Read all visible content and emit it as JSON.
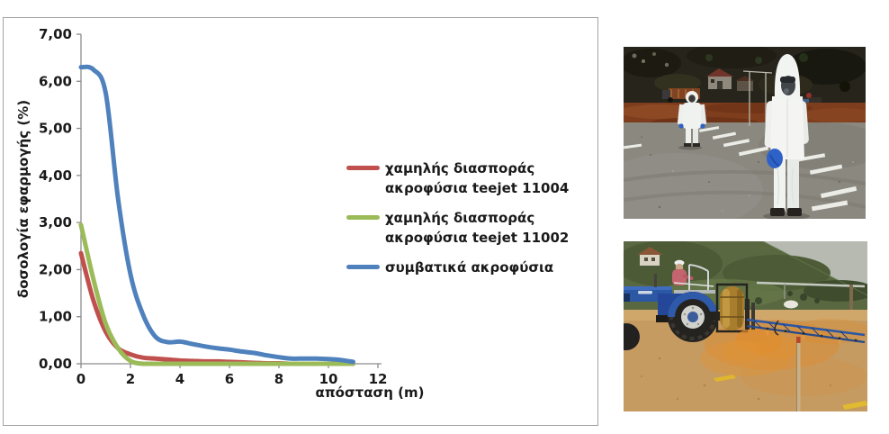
{
  "page": {
    "background": "#ffffff",
    "border_color": "#a3a3a3"
  },
  "chart": {
    "ylabel": "δοσολογία εφαρμογής (%)",
    "xlabel": "απόσταση (m)",
    "axis_color": "#8c8c8c",
    "text_color": "#1a1a1a",
    "legend": [
      {
        "lines": [
          "χαμηλής διασποράς",
          "ακροφύσια teejet 11004"
        ]
      },
      {
        "lines": [
          "χαμηλής διασποράς",
          "ακροφύσια teejet 11002"
        ]
      },
      {
        "lines": [
          "συμβατικά ακροφύσια",
          ""
        ]
      }
    ]
  },
  "chart_data": {
    "type": "line",
    "title": "",
    "xlabel": "απόσταση (m)",
    "ylabel": "δοσολογία εφαρμογής (%)",
    "xlim": [
      0,
      12
    ],
    "ylim": [
      0,
      7
    ],
    "x_tick_labels": [
      "0",
      "2",
      "4",
      "6",
      "8",
      "10",
      "12"
    ],
    "y_tick_labels": [
      "0,00",
      "1,00",
      "2,00",
      "3,00",
      "4,00",
      "5,00",
      "6,00",
      "7,00"
    ],
    "grid": false,
    "legend_position": "right-middle",
    "x": [
      0,
      0.5,
      1,
      1.5,
      2,
      2.5,
      3,
      3.5,
      4,
      4.5,
      5,
      5.5,
      6,
      6.5,
      7,
      7.5,
      8,
      8.5,
      9,
      9.5,
      10,
      10.5,
      11
    ],
    "series": [
      {
        "name": "χαμηλής διασποράς ακροφύσια teejet 11004",
        "color": "#C0504D",
        "values": [
          2.35,
          1.35,
          0.68,
          0.33,
          0.2,
          0.13,
          0.11,
          0.09,
          0.07,
          0.06,
          0.05,
          0.05,
          0.04,
          0.03,
          0.02,
          0.01,
          0.01,
          0.0,
          0.0,
          0.0,
          0.0,
          0.0,
          0.0
        ]
      },
      {
        "name": "χαμηλής διασποράς ακροφύσια teejet 11002",
        "color": "#9BBB59",
        "values": [
          2.95,
          1.8,
          0.85,
          0.33,
          0.06,
          0.0,
          0.0,
          0.0,
          0.0,
          0.0,
          0.0,
          0.0,
          0.0,
          0.0,
          0.0,
          0.0,
          0.0,
          0.0,
          0.0,
          0.0,
          0.0,
          0.0,
          0.0
        ]
      },
      {
        "name": "συμβατικά ακροφύσια",
        "color": "#4F81BD",
        "values": [
          6.3,
          6.25,
          5.75,
          3.5,
          1.9,
          1.05,
          0.58,
          0.46,
          0.47,
          0.42,
          0.37,
          0.33,
          0.3,
          0.26,
          0.23,
          0.18,
          0.14,
          0.11,
          0.11,
          0.11,
          0.1,
          0.08,
          0.04
        ]
      }
    ]
  },
  "photos": [
    {
      "name": "spray-deposit-trial-photo",
      "alt": "two operators in white protective suits on a field with white collector strips"
    },
    {
      "name": "tractor-boom-sprayer-photo",
      "alt": "blue tractor with boom sprayer applying orange tracer dye on bare ground"
    }
  ]
}
